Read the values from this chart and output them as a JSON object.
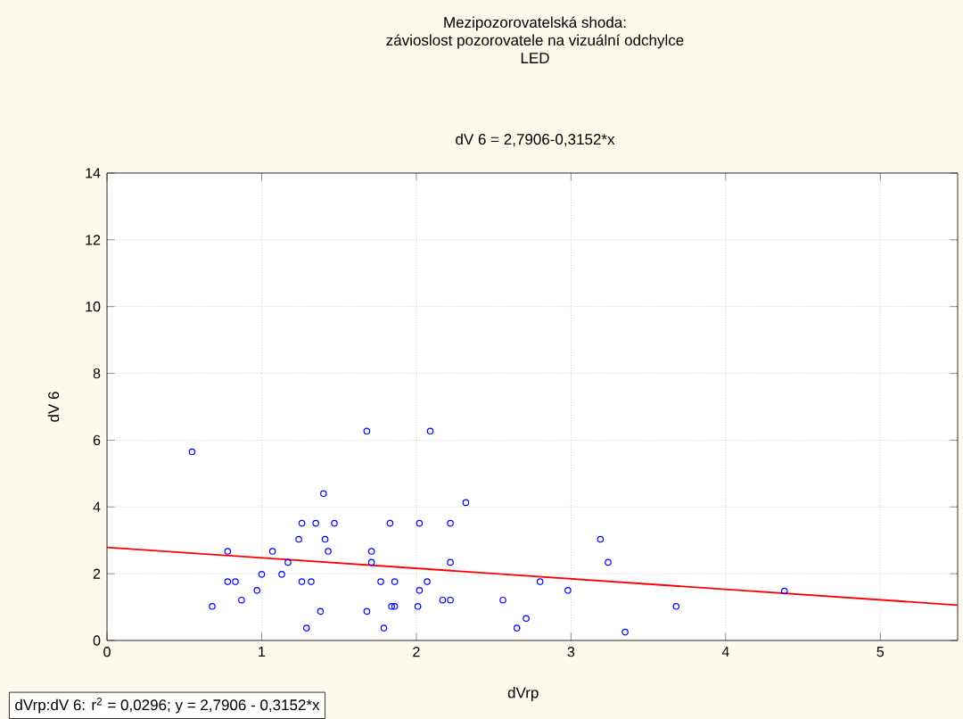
{
  "chart_data": {
    "type": "scatter",
    "title": "Mezipozorovatelská shoda:\nzávioslost pozorovatele na vizuální odchylce\nLED",
    "subtitle": "dV 6 = 2,7906-0,3152*x",
    "xlabel": "dVrp",
    "ylabel": "dV 6",
    "annotations": [
      "dVrp:dV 6:  r$^{2}$ = 0,0296;  y = 2,7906 - 0,3152*x"
    ],
    "xlim": [
      0,
      5.5
    ],
    "ylim": [
      0,
      14
    ],
    "xticks": [
      0,
      1,
      2,
      3,
      4,
      5
    ],
    "yticks": [
      0,
      2,
      4,
      6,
      8,
      10,
      12,
      14
    ],
    "grid": true,
    "marker": "circle",
    "series": [
      {
        "color": "#0000ff",
        "x": [
          0.55,
          1.68,
          2.09,
          1.4,
          1.26,
          1.35,
          1.47,
          1.83,
          2.02,
          2.22,
          1.24,
          1.41,
          0.78,
          1.07,
          1.43,
          1.71,
          1.17,
          1.71,
          2.22,
          1.0,
          1.13,
          0.78,
          0.83,
          1.26,
          1.32,
          1.77,
          1.86,
          2.07,
          0.97,
          2.02,
          0.87,
          2.17,
          2.22,
          0.68,
          1.84,
          1.86,
          2.01,
          1.38,
          1.68,
          1.29,
          1.79,
          2.32,
          3.19,
          3.24,
          2.8,
          2.98,
          2.56,
          2.71,
          2.65,
          3.35,
          3.68,
          4.38
        ],
        "values": [
          5.65,
          6.27,
          6.27,
          4.4,
          3.51,
          3.51,
          3.51,
          3.51,
          3.51,
          3.51,
          3.03,
          3.03,
          2.67,
          2.67,
          2.67,
          2.67,
          2.34,
          2.34,
          2.34,
          1.98,
          1.98,
          1.76,
          1.76,
          1.76,
          1.76,
          1.76,
          1.76,
          1.76,
          1.5,
          1.5,
          1.21,
          1.21,
          1.21,
          1.02,
          1.02,
          1.02,
          1.02,
          0.87,
          0.87,
          0.37,
          0.37,
          4.13,
          3.03,
          2.34,
          1.76,
          1.5,
          1.21,
          0.66,
          0.37,
          0.25,
          1.02,
          1.48
        ]
      },
      {
        "type": "line",
        "color": "#ff0000",
        "x": [
          0,
          5.5
        ],
        "values": [
          2.79,
          1.06
        ],
        "marker": "none",
        "line_style": "solid"
      }
    ]
  }
}
